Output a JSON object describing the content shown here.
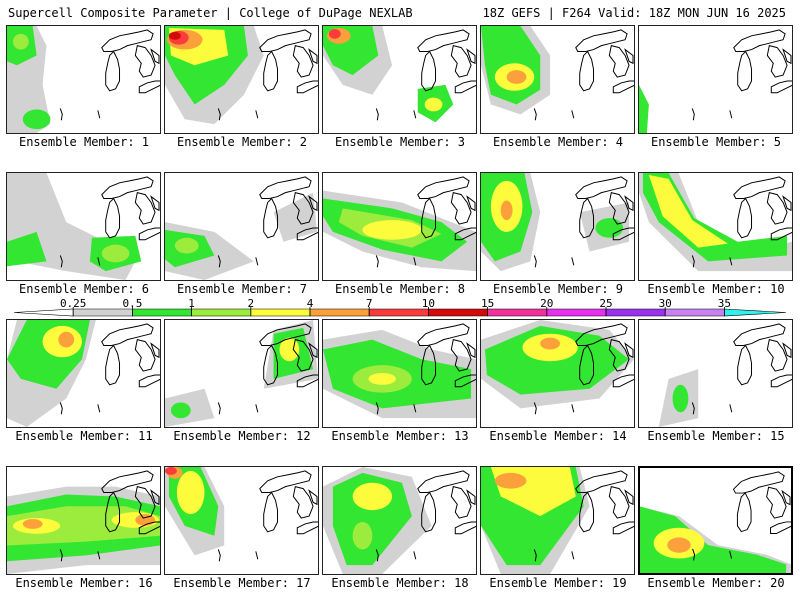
{
  "header": {
    "left": "Supercell Composite Parameter | College of DuPage NEXLAB",
    "right": "18Z GEFS | F264 Valid: 18Z MON JUN 16 2025"
  },
  "label_prefix": "Ensemble Member: ",
  "members": [
    {
      "label": "Ensemble Member: 1"
    },
    {
      "label": "Ensemble Member: 2"
    },
    {
      "label": "Ensemble Member: 3"
    },
    {
      "label": "Ensemble Member: 4"
    },
    {
      "label": "Ensemble Member: 5"
    },
    {
      "label": "Ensemble Member: 6"
    },
    {
      "label": "Ensemble Member: 7"
    },
    {
      "label": "Ensemble Member: 8"
    },
    {
      "label": "Ensemble Member: 9"
    },
    {
      "label": "Ensemble Member: 10"
    },
    {
      "label": "Ensemble Member: 11"
    },
    {
      "label": "Ensemble Member: 12"
    },
    {
      "label": "Ensemble Member: 13"
    },
    {
      "label": "Ensemble Member: 14"
    },
    {
      "label": "Ensemble Member: 15"
    },
    {
      "label": "Ensemble Member: 16"
    },
    {
      "label": "Ensemble Member: 17"
    },
    {
      "label": "Ensemble Member: 18"
    },
    {
      "label": "Ensemble Member: 19"
    },
    {
      "label": "Ensemble Member: 20"
    }
  ],
  "colorbar": {
    "ticks": [
      "0.25",
      "0.5",
      "1",
      "2",
      "4",
      "7",
      "10",
      "15",
      "20",
      "25",
      "30",
      "35"
    ],
    "colors": [
      "#ffffff",
      "#d2d2d2",
      "#32e632",
      "#9bec3c",
      "#fcfc3c",
      "#fca03c",
      "#fa3c3c",
      "#d20a0a",
      "#f0329b",
      "#e632f0",
      "#9b32f0",
      "#c882f0",
      "#32f0f0"
    ]
  }
}
